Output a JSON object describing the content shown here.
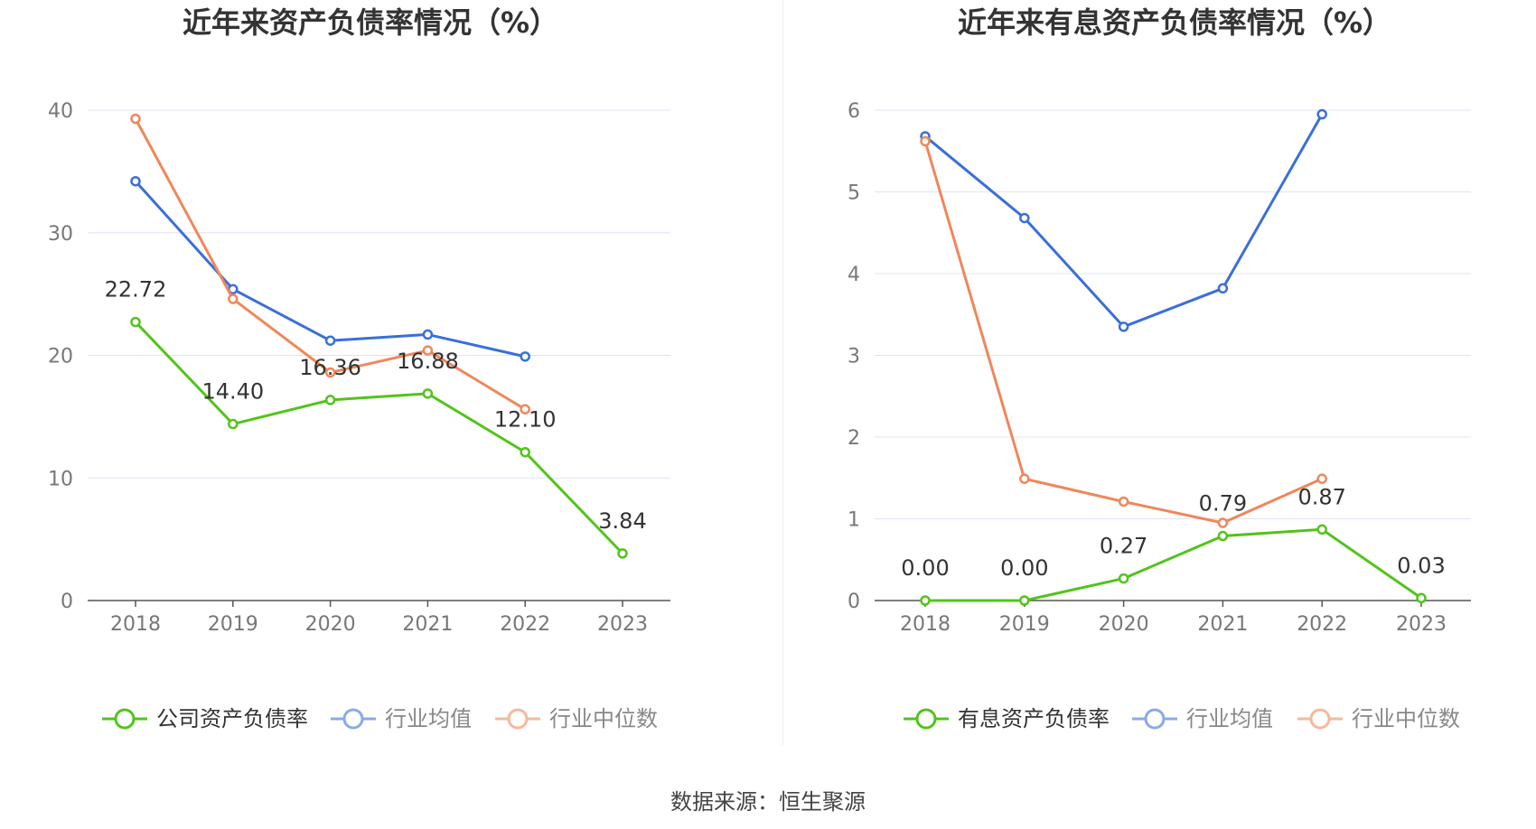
{
  "source_text": "数据来源：恒生聚源",
  "colors": {
    "green": "#52c41a",
    "blue": "#3a6fd8",
    "orange": "#f0875a"
  },
  "chart_data": [
    {
      "type": "line",
      "title": "近年来资产负债率情况（%）",
      "categories": [
        "2018",
        "2019",
        "2020",
        "2021",
        "2022",
        "2023"
      ],
      "yticks": [
        0,
        10,
        20,
        30,
        40
      ],
      "ylim": [
        0,
        40
      ],
      "grid": true,
      "legend": "bottom",
      "series": [
        {
          "name": "公司资产负债率",
          "color": "#52c41a",
          "values": [
            22.72,
            14.4,
            16.36,
            16.88,
            12.1,
            3.84
          ],
          "labels": [
            "22.72",
            "14.40",
            "16.36",
            "16.88",
            "12.10",
            "3.84"
          ]
        },
        {
          "name": "行业均值",
          "color": "#3a6fd8",
          "values": [
            34.2,
            25.4,
            21.2,
            21.7,
            19.9,
            null
          ]
        },
        {
          "name": "行业中位数",
          "color": "#f0875a",
          "values": [
            39.3,
            24.6,
            18.6,
            20.4,
            15.6,
            null
          ]
        }
      ]
    },
    {
      "type": "line",
      "title": "近年来有息资产负债率情况（%）",
      "categories": [
        "2018",
        "2019",
        "2020",
        "2021",
        "2022",
        "2023"
      ],
      "yticks": [
        0,
        1,
        2,
        3,
        4,
        5,
        6
      ],
      "ylim": [
        0,
        6
      ],
      "grid": true,
      "legend": "bottom",
      "series": [
        {
          "name": "有息资产负债率",
          "color": "#52c41a",
          "values": [
            0.0,
            0.0,
            0.27,
            0.79,
            0.87,
            0.03
          ],
          "labels": [
            "0.00",
            "0.00",
            "0.27",
            "0.79",
            "0.87",
            "0.03"
          ]
        },
        {
          "name": "行业均值",
          "color": "#3a6fd8",
          "values": [
            5.68,
            4.68,
            3.35,
            3.82,
            5.95,
            null
          ]
        },
        {
          "name": "行业中位数",
          "color": "#f0875a",
          "values": [
            5.62,
            1.49,
            1.21,
            0.95,
            1.49,
            null
          ]
        }
      ]
    }
  ]
}
